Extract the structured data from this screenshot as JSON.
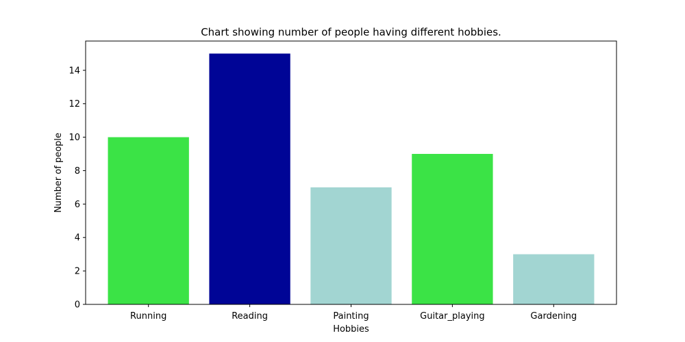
{
  "chart_data": {
    "type": "bar",
    "title": "Chart showing number of people having different hobbies.",
    "xlabel": "Hobbies",
    "ylabel": "Number of people",
    "categories": [
      "Running",
      "Reading",
      "Painting",
      "Guitar_playing",
      "Gardening"
    ],
    "values": [
      10,
      15,
      7,
      9,
      3
    ],
    "colors": [
      "#3be346",
      "#000596",
      "#a2d5d2",
      "#3be346",
      "#a2d5d2"
    ],
    "ylim": [
      0,
      15.75
    ],
    "yticks": [
      0,
      2,
      4,
      6,
      8,
      10,
      12,
      14
    ],
    "grid": false
  }
}
